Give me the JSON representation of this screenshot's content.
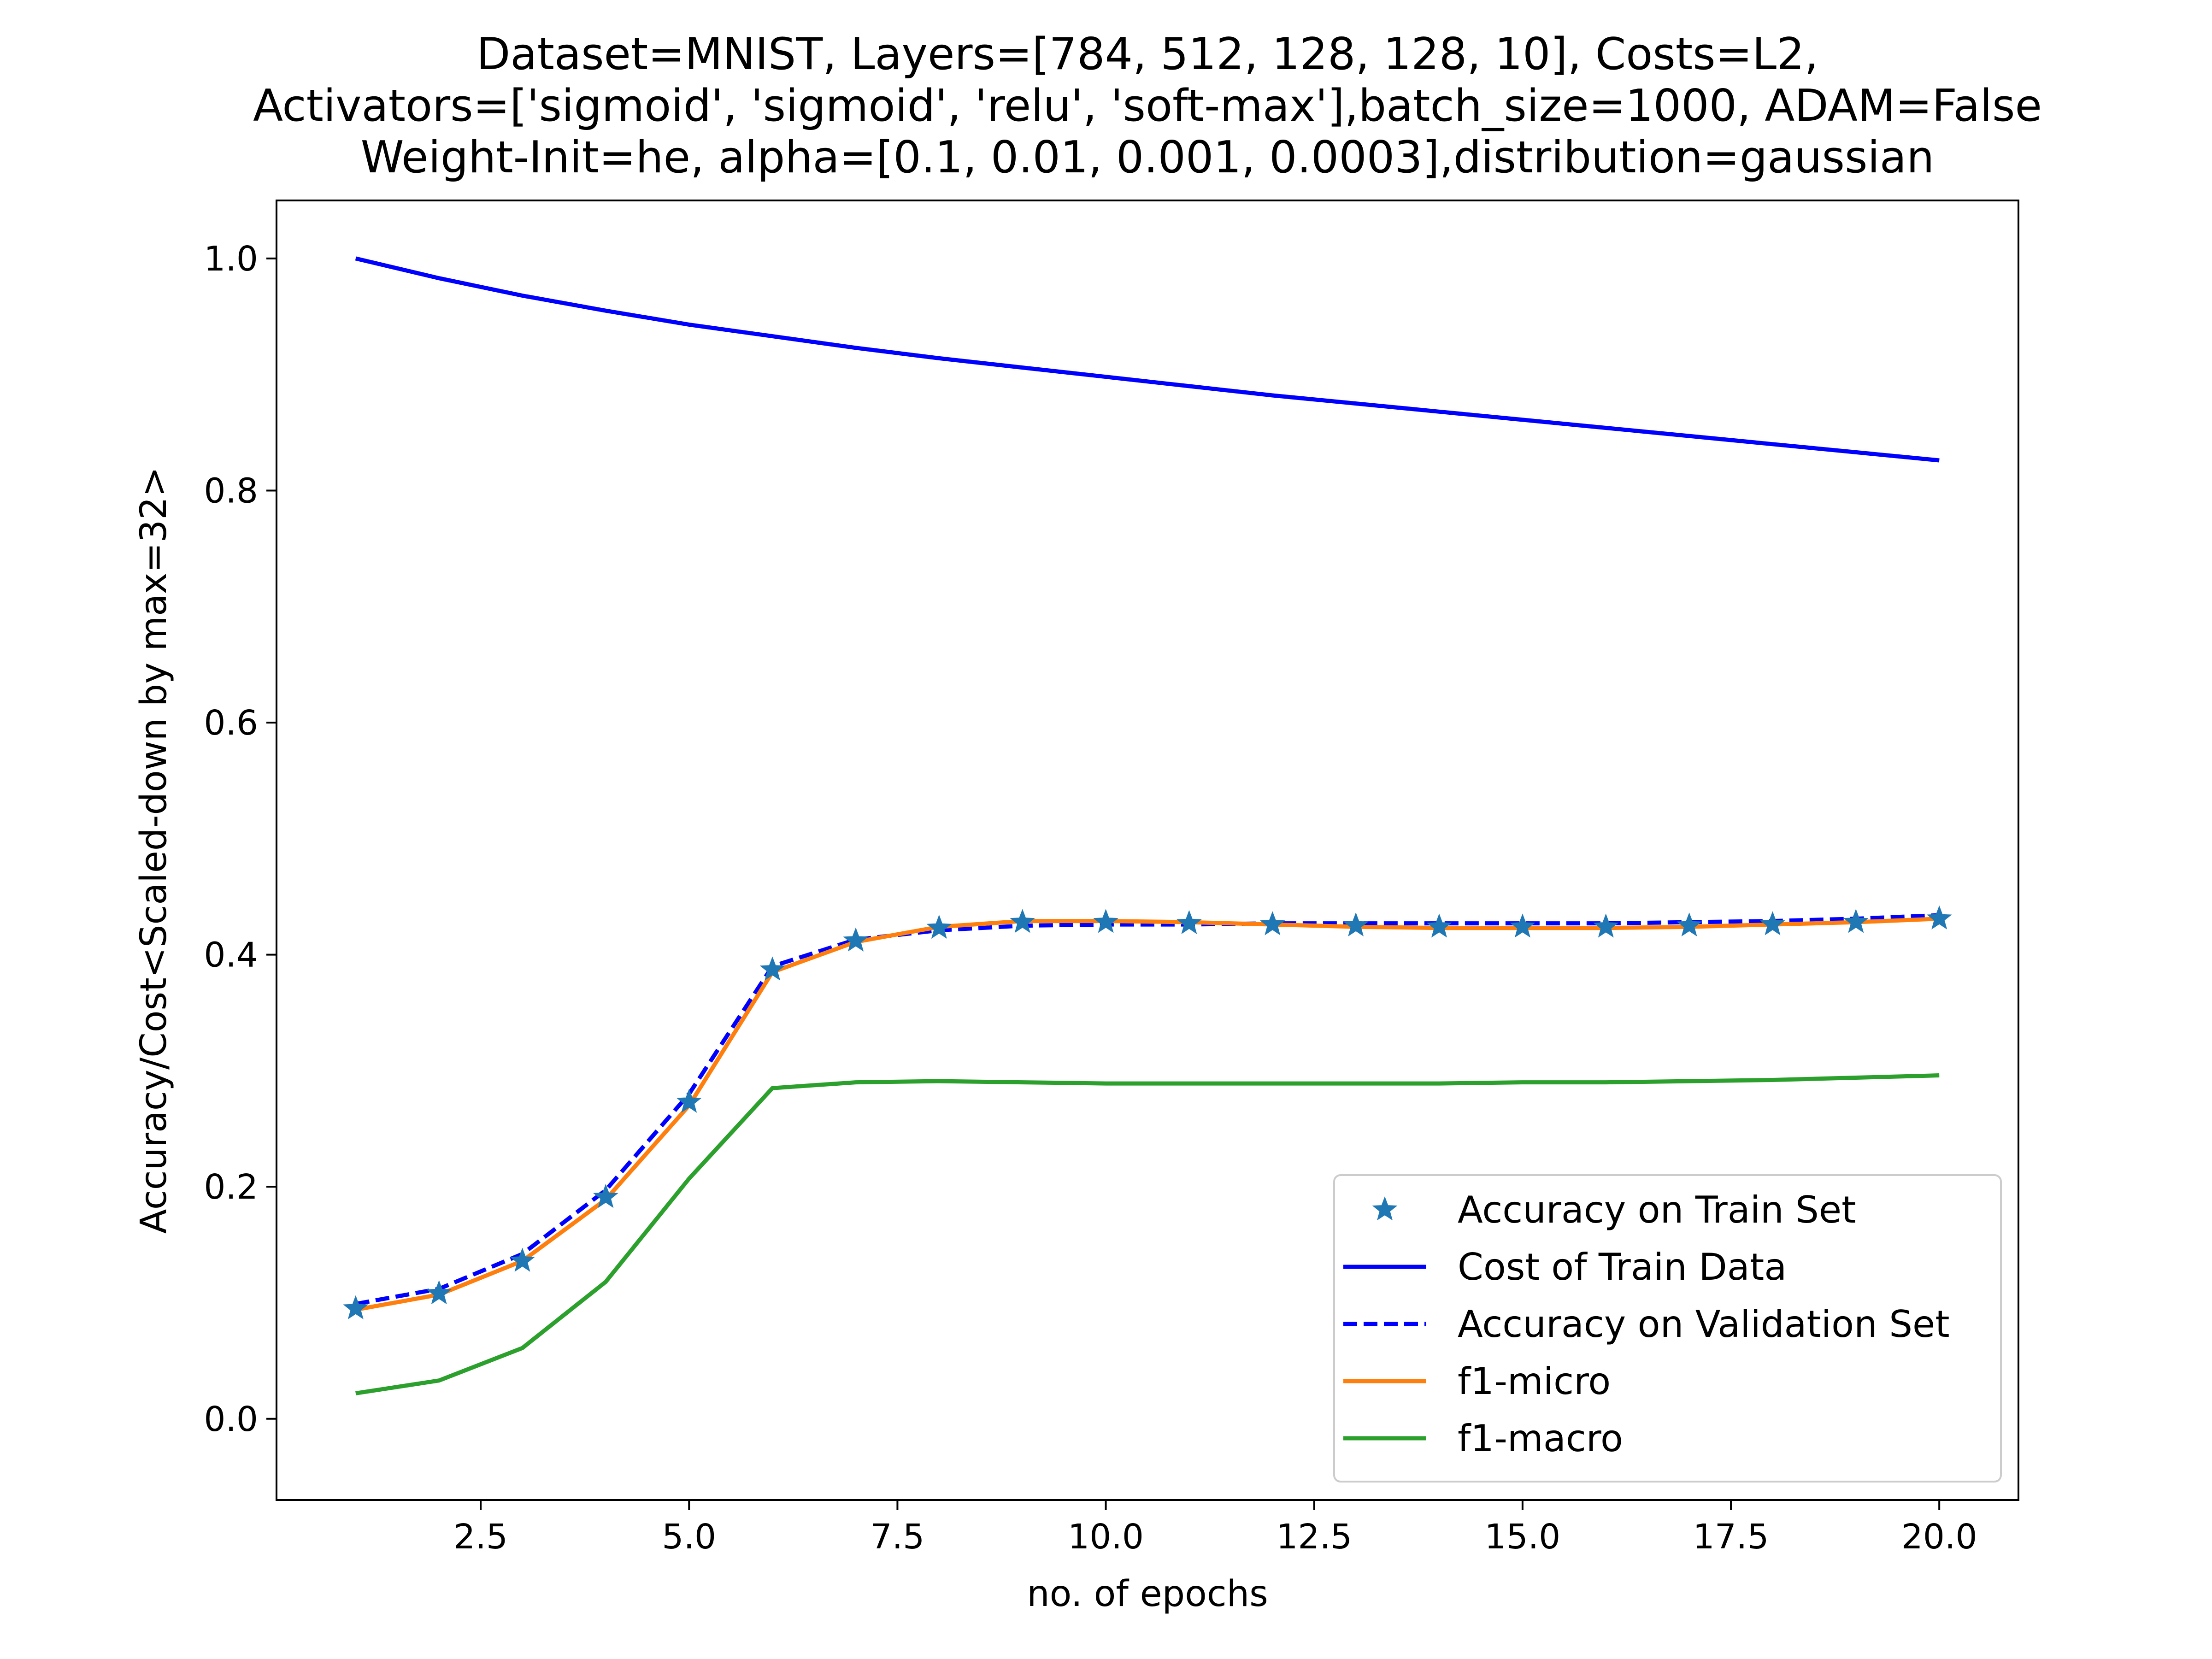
{
  "chart_data": {
    "type": "line",
    "title_lines": [
      "Dataset=MNIST, Layers=[784, 512, 128, 128, 10], Costs=L2,",
      "Activators=['sigmoid', 'sigmoid', 'relu', 'soft-max'],batch_size=1000, ADAM=False",
      "Weight-Init=he, alpha=[0.1, 0.01, 0.001, 0.0003],distribution=gaussian"
    ],
    "xlabel": "no. of epochs",
    "ylabel": "Accuracy/Cost<Scaled-down by max=32>",
    "xlim": [
      0.05,
      20.95
    ],
    "ylim": [
      -0.07,
      1.05
    ],
    "x_ticks": [
      2.5,
      5.0,
      7.5,
      10.0,
      12.5,
      15.0,
      17.5,
      20.0
    ],
    "x_tick_labels": [
      "2.5",
      "5.0",
      "7.5",
      "10.0",
      "12.5",
      "15.0",
      "17.5",
      "20.0"
    ],
    "y_ticks": [
      0.0,
      0.2,
      0.4,
      0.6,
      0.8,
      1.0
    ],
    "y_tick_labels": [
      "0.0",
      "0.2",
      "0.4",
      "0.6",
      "0.8",
      "1.0"
    ],
    "grid": false,
    "legend_position": "lower-right",
    "x": [
      1,
      2,
      3,
      4,
      5,
      6,
      7,
      8,
      9,
      10,
      11,
      12,
      13,
      14,
      15,
      16,
      17,
      18,
      19,
      20
    ],
    "series": [
      {
        "name": "Accuracy on Train Set",
        "style": "star-markers",
        "color": "#1f77b4",
        "values": [
          0.095,
          0.108,
          0.136,
          0.191,
          0.273,
          0.387,
          0.412,
          0.423,
          0.428,
          0.428,
          0.427,
          0.426,
          0.425,
          0.424,
          0.424,
          0.424,
          0.425,
          0.426,
          0.428,
          0.431
        ]
      },
      {
        "name": "Cost of Train Data",
        "style": "solid",
        "color": "#0000ff",
        "values": [
          1.0,
          0.983,
          0.968,
          0.955,
          0.943,
          0.933,
          0.923,
          0.914,
          0.906,
          0.898,
          0.89,
          0.882,
          0.875,
          0.868,
          0.861,
          0.854,
          0.847,
          0.84,
          0.833,
          0.826
        ]
      },
      {
        "name": "Accuracy on Validation Set",
        "style": "dashed",
        "color": "#0000ff",
        "values": [
          0.099,
          0.112,
          0.142,
          0.197,
          0.28,
          0.39,
          0.413,
          0.421,
          0.425,
          0.426,
          0.426,
          0.427,
          0.427,
          0.427,
          0.427,
          0.427,
          0.428,
          0.429,
          0.431,
          0.434
        ]
      },
      {
        "name": "f1-micro",
        "style": "solid",
        "color": "#ff7f0e",
        "values": [
          0.094,
          0.107,
          0.136,
          0.189,
          0.27,
          0.385,
          0.411,
          0.424,
          0.429,
          0.429,
          0.428,
          0.426,
          0.424,
          0.423,
          0.423,
          0.423,
          0.424,
          0.426,
          0.428,
          0.431
        ]
      },
      {
        "name": "f1-macro",
        "style": "solid",
        "color": "#2ca02c",
        "values": [
          0.022,
          0.033,
          0.061,
          0.118,
          0.207,
          0.285,
          0.29,
          0.291,
          0.29,
          0.289,
          0.289,
          0.289,
          0.289,
          0.289,
          0.29,
          0.29,
          0.291,
          0.292,
          0.294,
          0.296
        ]
      }
    ]
  }
}
